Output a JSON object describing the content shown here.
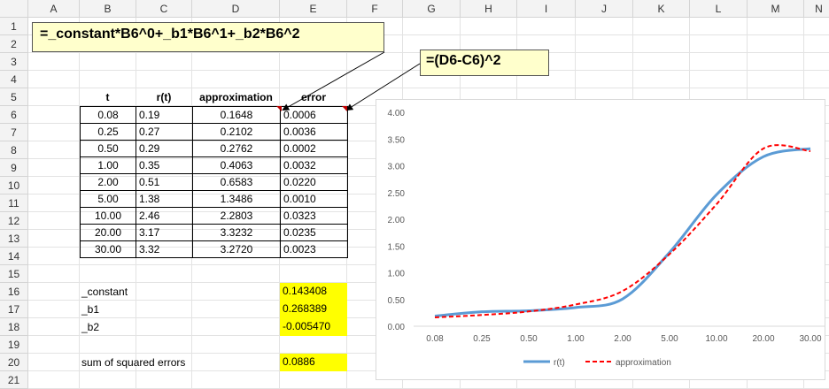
{
  "columns": [
    "A",
    "B",
    "C",
    "D",
    "E",
    "F",
    "G",
    "H",
    "I",
    "J",
    "K",
    "L",
    "M",
    "N"
  ],
  "rows": [
    "1",
    "2",
    "3",
    "4",
    "5",
    "6",
    "7",
    "8",
    "9",
    "10",
    "11",
    "12",
    "13",
    "14",
    "15",
    "16",
    "17",
    "18",
    "19",
    "20",
    "21"
  ],
  "callouts": {
    "formula_approx": "=_constant*B6^0+_b1*B6^1+_b2*B6^2",
    "formula_error": "=(D6-C6)^2"
  },
  "table": {
    "headers": [
      "t",
      "r(t)",
      "approximation",
      "error"
    ],
    "rows": [
      [
        "0.08",
        "0.19",
        "0.1648",
        "0.0006"
      ],
      [
        "0.25",
        "0.27",
        "0.2102",
        "0.0036"
      ],
      [
        "0.50",
        "0.29",
        "0.2762",
        "0.0002"
      ],
      [
        "1.00",
        "0.35",
        "0.4063",
        "0.0032"
      ],
      [
        "2.00",
        "0.51",
        "0.6583",
        "0.0220"
      ],
      [
        "5.00",
        "1.38",
        "1.3486",
        "0.0010"
      ],
      [
        "10.00",
        "2.46",
        "2.2803",
        "0.0323"
      ],
      [
        "20.00",
        "3.17",
        "3.3232",
        "0.0235"
      ],
      [
        "30.00",
        "3.32",
        "3.2720",
        "0.0023"
      ]
    ]
  },
  "params": {
    "constant_label": "_constant",
    "constant_value": "0.143408",
    "b1_label": "_b1",
    "b1_value": "0.268389",
    "b2_label": "_b2",
    "b2_value": "-0.005470",
    "sse_label": "sum of squared errors",
    "sse_value": "0.0886"
  },
  "colors": {
    "highlight": "#ffff00",
    "callout_bg": "#ffffcc",
    "series_rt": "#5b9bd5",
    "series_approx": "#ff0000"
  },
  "chart_data": {
    "type": "line",
    "categories": [
      "0.08",
      "0.25",
      "0.50",
      "1.00",
      "2.00",
      "5.00",
      "10.00",
      "20.00",
      "30.00"
    ],
    "series": [
      {
        "name": "r(t)",
        "values": [
          0.19,
          0.27,
          0.29,
          0.35,
          0.51,
          1.38,
          2.46,
          3.17,
          3.32
        ],
        "style": "solid",
        "color": "#5b9bd5"
      },
      {
        "name": "approximation",
        "values": [
          0.1648,
          0.2102,
          0.2762,
          0.4063,
          0.6583,
          1.3486,
          2.2803,
          3.3232,
          3.272
        ],
        "style": "dashed",
        "color": "#ff0000"
      }
    ],
    "yticks": [
      "0.00",
      "0.50",
      "1.00",
      "1.50",
      "2.00",
      "2.50",
      "3.00",
      "3.50",
      "4.00"
    ],
    "ylim": [
      0,
      4
    ],
    "grid": false,
    "legend": "bottom"
  }
}
